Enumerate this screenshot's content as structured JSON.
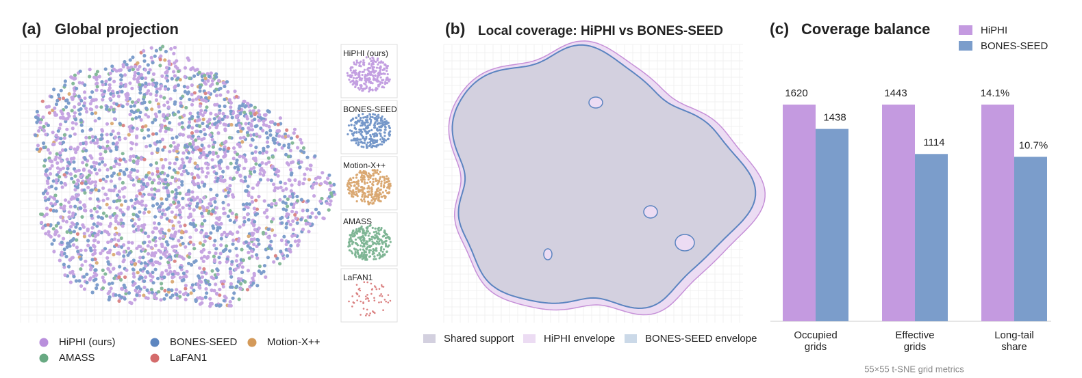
{
  "chart_data": [
    {
      "type": "scatter",
      "label": "(a)",
      "title": "Global projection",
      "series": [
        {
          "name": "HiPHI (ours)",
          "color": "#b98fdc"
        },
        {
          "name": "BONES-SEED",
          "color": "#5d86c0"
        },
        {
          "name": "Motion-X++",
          "color": "#d49a5a"
        },
        {
          "name": "AMASS",
          "color": "#68a982"
        },
        {
          "name": "LaFAN1",
          "color": "#d46b6b"
        }
      ],
      "insets": [
        {
          "label": "HiPHI (ours)",
          "color": "#b98fdc"
        },
        {
          "label": "BONES-SEED",
          "color": "#5d86c0"
        },
        {
          "label": "Motion-X++",
          "color": "#d49a5a"
        },
        {
          "label": "AMASS",
          "color": "#68a982"
        },
        {
          "label": "LaFAN1",
          "color": "#d46b6b"
        }
      ]
    },
    {
      "type": "area",
      "label": "(b)",
      "title": "Local coverage: HiPHI vs BONES-SEED",
      "series": [
        {
          "name": "Shared support",
          "color": "#d3d0df"
        },
        {
          "name": "HiPHI envelope",
          "color": "#ecdcf3"
        },
        {
          "name": "BONES-SEED envelope",
          "color": "#cbd9e8"
        }
      ]
    },
    {
      "type": "bar",
      "label": "(c)",
      "title": "Coverage balance",
      "categories": [
        "Occupied grids",
        "Effective grids",
        "Long-tail share"
      ],
      "series": [
        {
          "name": "HiPHI",
          "color": "#c49ae0",
          "values": [
            1620,
            1443,
            14.1
          ],
          "value_labels": [
            "1620",
            "1443",
            "14.1%"
          ]
        },
        {
          "name": "BONES-SEED",
          "color": "#7b9dcb",
          "values": [
            1438,
            1114,
            10.7
          ],
          "value_labels": [
            "1438",
            "1114",
            "10.7%"
          ]
        }
      ],
      "caption": "55×55 t-SNE grid metrics"
    }
  ]
}
